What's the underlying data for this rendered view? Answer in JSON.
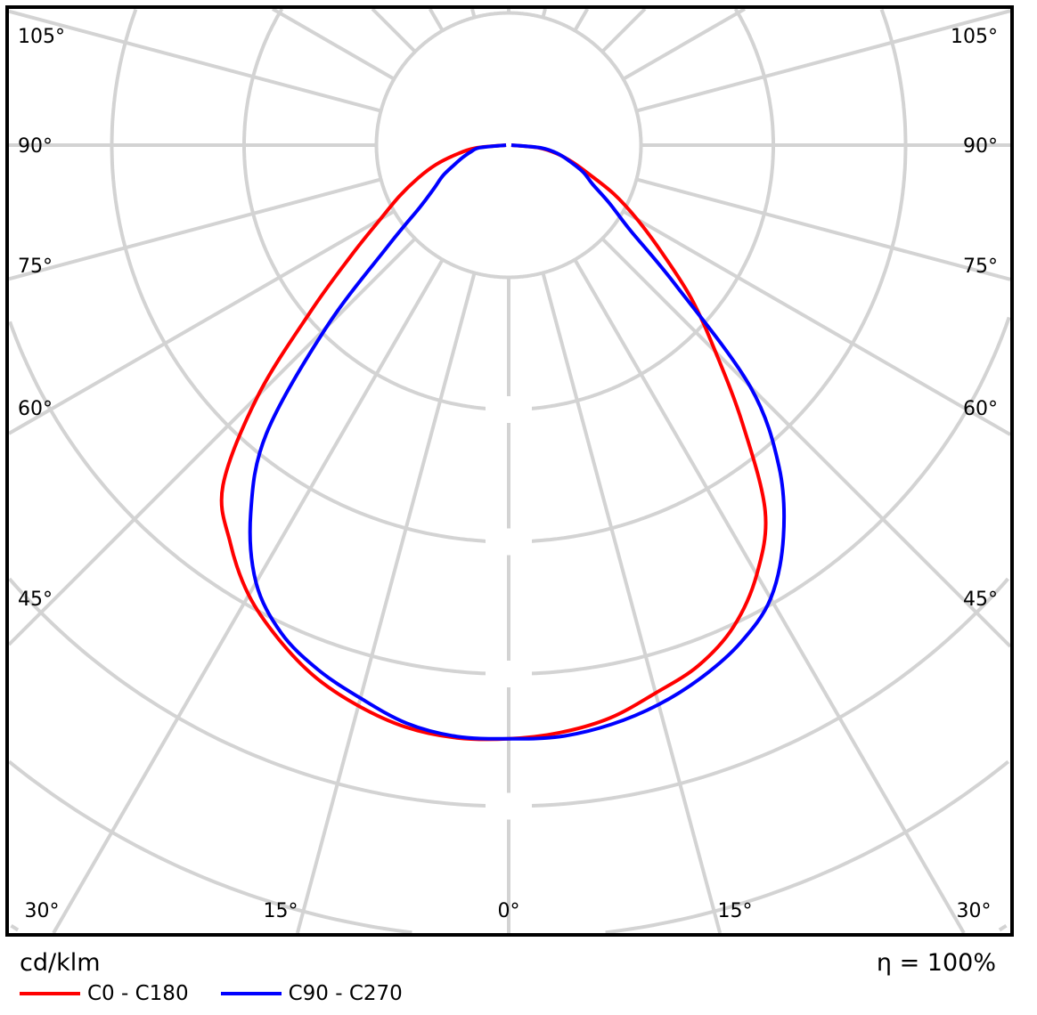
{
  "chart_data": {
    "type": "polar",
    "unit_label": "cd/klm",
    "efficiency_label": "η = 100%",
    "angle_labels_side": [
      "105°",
      "90°",
      "75°",
      "60°",
      "45°"
    ],
    "angle_labels_bottom": [
      "30°",
      "15°",
      "0°",
      "15°",
      "30°"
    ],
    "grid": true,
    "angle_step_deg": 15,
    "legend_placement": "bottom-left",
    "gamma": [
      0,
      5,
      10,
      15,
      20,
      25,
      30,
      35,
      40,
      45,
      50,
      55,
      60,
      65,
      70,
      75,
      80,
      85,
      90
    ],
    "series": [
      {
        "name": "C0 - C180",
        "color": "#ff0000",
        "left": [
          4.49,
          4.5,
          4.47,
          4.39,
          4.28,
          4.12,
          3.93,
          3.67,
          3.36,
          2.68,
          1.95,
          1.45,
          1.12,
          0.91,
          0.73,
          0.57,
          0.4,
          0.25,
          0.02
        ],
        "right": [
          4.49,
          4.46,
          4.4,
          4.29,
          4.19,
          4.02,
          3.75,
          3.38,
          2.75,
          2.21,
          1.8,
          1.41,
          1.12,
          0.88,
          0.65,
          0.5,
          0.37,
          0.23,
          0.02
        ]
      },
      {
        "name": "C90 - C270",
        "color": "#0000ff",
        "left": [
          4.49,
          4.49,
          4.44,
          4.33,
          4.22,
          4.07,
          3.82,
          3.4,
          2.85,
          1.95,
          1.2,
          0.82,
          0.65,
          0.55,
          0.44,
          0.36,
          0.29,
          0.22,
          0.02
        ],
        "right": [
          4.49,
          4.49,
          4.45,
          4.38,
          4.28,
          4.15,
          3.96,
          3.62,
          3.18,
          2.58,
          1.65,
          1.12,
          0.88,
          0.7,
          0.6,
          0.48,
          0.38,
          0.25,
          0.02
        ]
      }
    ]
  }
}
